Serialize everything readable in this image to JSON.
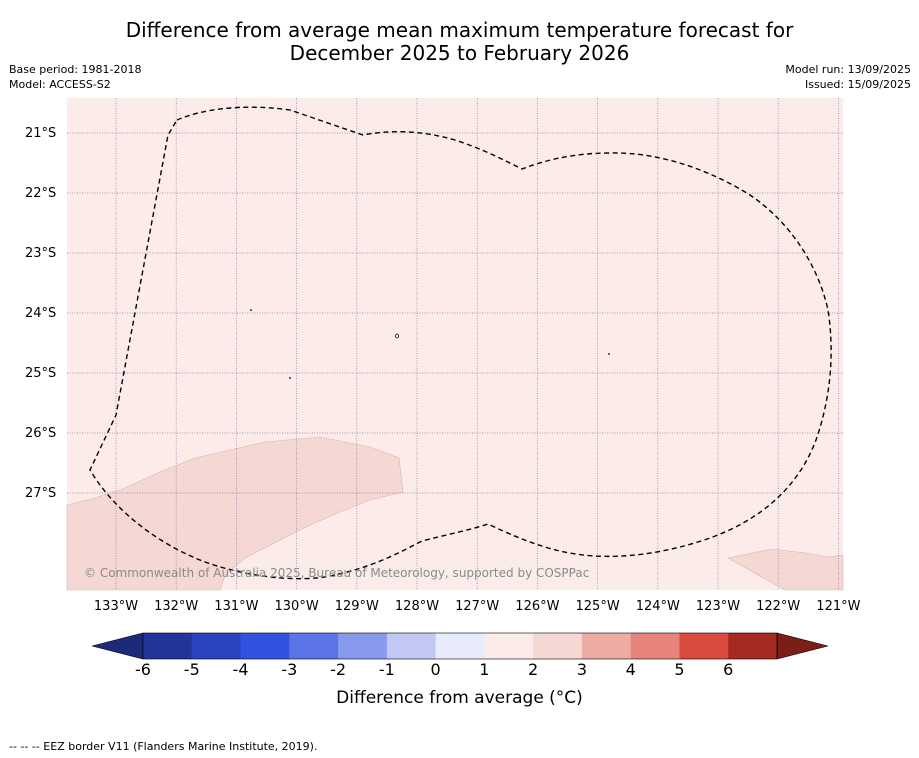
{
  "header": {
    "title_line1": "Difference from average mean maximum temperature forecast for",
    "title_line2": "December 2025 to February 2026",
    "base_period": "Base period: 1981-2018",
    "model": "Model: ACCESS-S2",
    "model_run": "Model run: 13/09/2025",
    "issued": "Issued: 15/09/2025"
  },
  "map": {
    "latitude_labels": [
      "21°S",
      "22°S",
      "23°S",
      "24°S",
      "25°S",
      "26°S",
      "27°S"
    ],
    "longitude_labels": [
      "133°W",
      "132°W",
      "131°W",
      "130°W",
      "129°W",
      "128°W",
      "127°W",
      "126°W",
      "125°W",
      "124°W",
      "123°W",
      "122°W",
      "121°W"
    ],
    "background_category": "0 to 1",
    "patch_category": "1 to 2",
    "copyright": "© Commonwealth of Australia 2025, Bureau of Meteorology, supported by COSPPac"
  },
  "colorbar": {
    "ticks": [
      "-6",
      "-5",
      "-4",
      "-3",
      "-2",
      "-1",
      "0",
      "1",
      "2",
      "3",
      "4",
      "5",
      "6"
    ],
    "colors": [
      "#22349a",
      "#2a43be",
      "#3351e0",
      "#5b74e8",
      "#8899ee",
      "#c1c8f5",
      "#e8ebfb",
      "#fbecea",
      "#f5d7d3",
      "#ecaca4",
      "#e6837a",
      "#d94a3f",
      "#a52a22"
    ],
    "extend_low_color": "#1c2a7a",
    "extend_high_color": "#7a1e17",
    "label": "Difference from average (°C)"
  },
  "footer": {
    "legend": "--  --  -- EEZ border V11 (Flanders Marine Institute, 2019)."
  }
}
